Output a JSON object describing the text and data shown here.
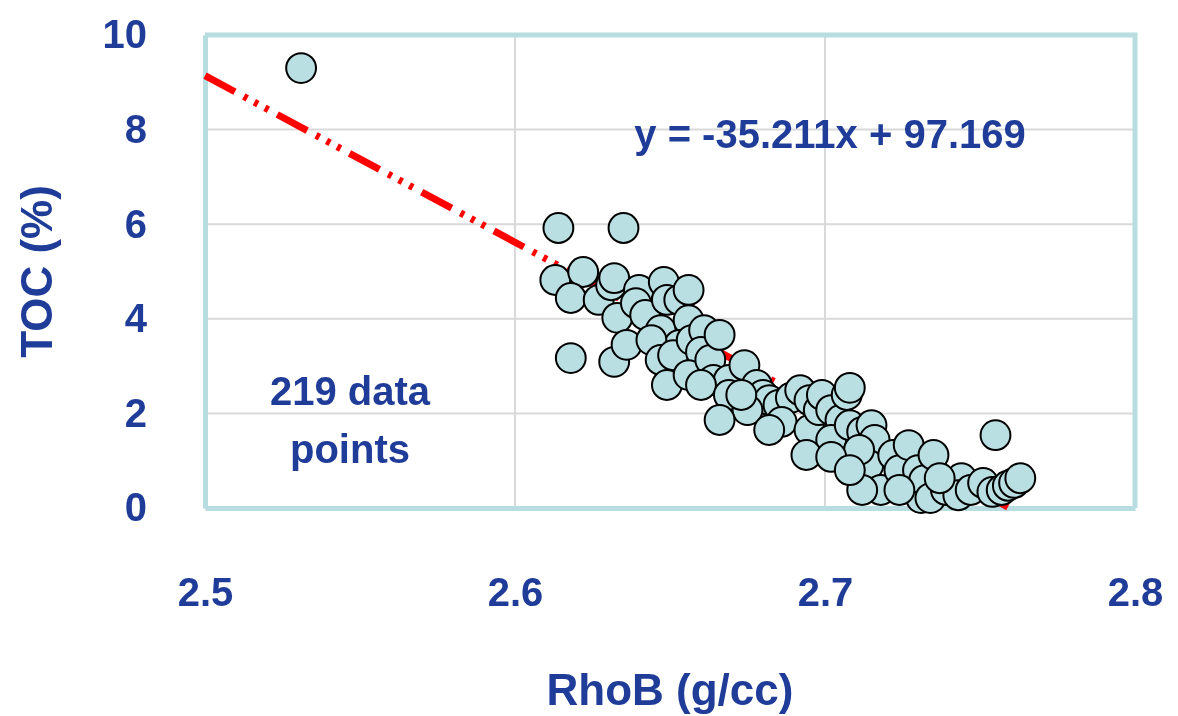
{
  "chart_data": {
    "type": "scatter",
    "xlabel": "RhoB (g/cc)",
    "ylabel": "TOC (%)",
    "xlim": [
      2.5,
      2.8
    ],
    "xticks": [
      2.5,
      2.6,
      2.7,
      2.8
    ],
    "ylim": [
      0,
      10
    ],
    "yticks": [
      0,
      2,
      4,
      6,
      8,
      10
    ],
    "grid": true,
    "marker": "circle",
    "annotations": [
      "y = -35.211x + 97.169",
      "219  data points"
    ],
    "series": [
      {
        "type": "line",
        "color": "#ff0000",
        "line_style": "dashed",
        "marker": "none",
        "x": [
          2.5,
          2.759
        ],
        "values": [
          9.14,
          0.02
        ]
      },
      {
        "color": "#b9dfe2",
        "x": [
          2.531,
          2.614,
          2.635,
          2.613,
          2.622,
          2.618,
          2.618,
          2.632,
          2.627,
          2.631,
          2.633,
          2.636,
          2.632,
          2.64,
          2.639,
          2.642,
          2.648,
          2.649,
          2.647,
          2.653,
          2.656,
          2.656,
          2.653,
          2.644,
          2.647,
          2.651,
          2.657,
          2.661,
          2.66,
          2.649,
          2.656,
          2.663,
          2.666,
          2.664,
          2.669,
          2.66,
          2.669,
          2.674,
          2.678,
          2.68,
          2.682,
          2.675,
          2.685,
          2.689,
          2.686,
          2.692,
          2.695,
          2.695,
          2.698,
          2.699,
          2.702,
          2.705,
          2.702,
          2.707,
          2.708,
          2.694,
          2.708,
          2.712,
          2.715,
          2.716,
          2.714,
          2.711,
          2.718,
          2.722,
          2.724,
          2.727,
          2.73,
          2.731,
          2.732,
          2.735,
          2.734,
          2.739,
          2.744,
          2.743,
          2.747,
          2.751,
          2.754,
          2.755,
          2.757,
          2.759,
          2.761,
          2.763,
          2.712,
          2.702,
          2.666,
          2.673,
          2.682,
          2.708,
          2.724,
          2.737
        ],
        "values": [
          9.3,
          5.92,
          5.92,
          4.82,
          4.99,
          4.44,
          3.17,
          3.09,
          4.4,
          4.71,
          4.02,
          3.45,
          4.86,
          4.61,
          4.33,
          4.08,
          4.78,
          4.4,
          3.76,
          4.4,
          4.61,
          3.97,
          3.45,
          3.55,
          3.13,
          3.23,
          3.55,
          3.76,
          3.3,
          2.6,
          2.81,
          3.13,
          3.66,
          2.71,
          2.71,
          2.6,
          2.39,
          3.02,
          2.6,
          2.39,
          2.28,
          2.07,
          2.18,
          2.33,
          1.82,
          2.49,
          2.28,
          1.65,
          2.07,
          2.39,
          2.07,
          1.86,
          1.44,
          2.39,
          2.54,
          1.12,
          1.75,
          1.61,
          1.75,
          1.44,
          0.91,
          1.23,
          0.38,
          1.12,
          0.8,
          1.33,
          0.8,
          0.21,
          0.59,
          1.12,
          0.21,
          0.38,
          0.63,
          0.27,
          0.38,
          0.53,
          0.34,
          1.54,
          0.38,
          0.47,
          0.53,
          0.63,
          0.38,
          1.08,
          1.86,
          2.39,
          1.65,
          0.8,
          0.38,
          0.63
        ]
      }
    ]
  }
}
